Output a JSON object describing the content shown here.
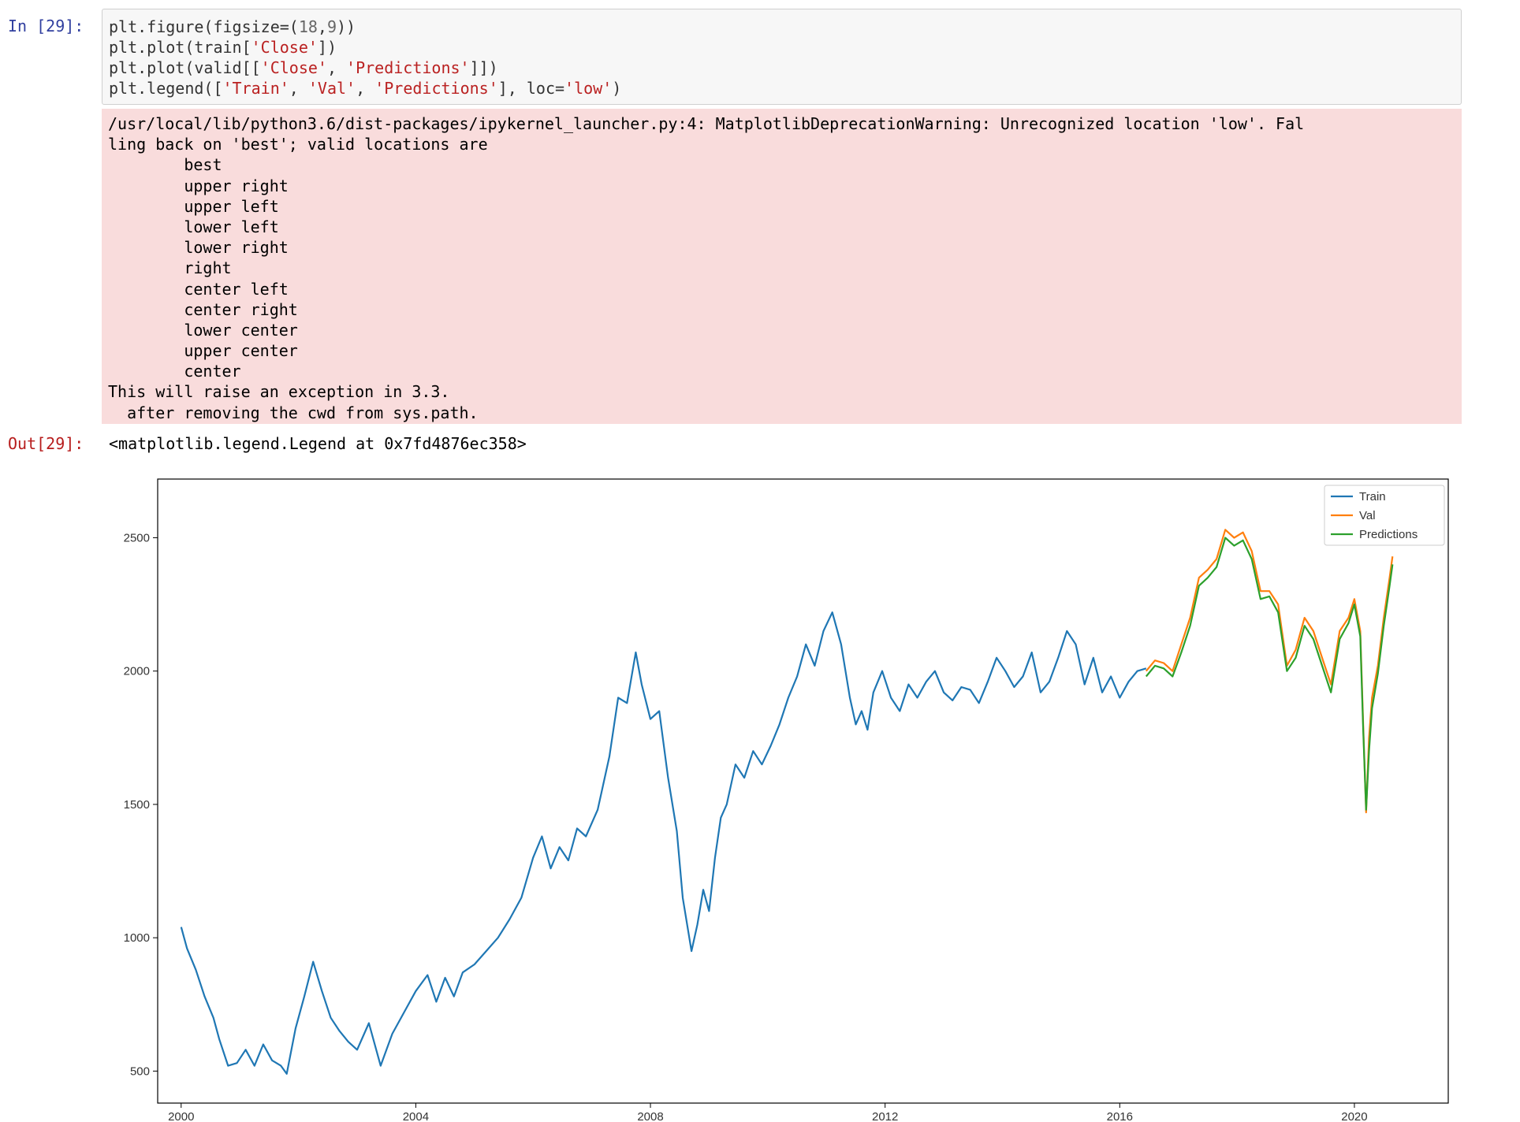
{
  "cell": {
    "input_prompt": "In [29]:",
    "output_prompt": "Out[29]:",
    "code_lines": [
      [
        {
          "t": "plt.figure(figsize=(",
          "c": ""
        },
        {
          "t": "18",
          "c": "num"
        },
        {
          "t": ",",
          "c": ""
        },
        {
          "t": "9",
          "c": "num"
        },
        {
          "t": "))",
          "c": ""
        }
      ],
      [
        {
          "t": "plt.plot(train[",
          "c": ""
        },
        {
          "t": "'Close'",
          "c": "str"
        },
        {
          "t": "])",
          "c": ""
        }
      ],
      [
        {
          "t": "plt.plot(valid[[",
          "c": ""
        },
        {
          "t": "'Close'",
          "c": "str"
        },
        {
          "t": ", ",
          "c": ""
        },
        {
          "t": "'Predictions'",
          "c": "str"
        },
        {
          "t": "]])",
          "c": ""
        }
      ],
      [
        {
          "t": "plt.legend([",
          "c": ""
        },
        {
          "t": "'Train'",
          "c": "str"
        },
        {
          "t": ", ",
          "c": ""
        },
        {
          "t": "'Val'",
          "c": "str"
        },
        {
          "t": ", ",
          "c": ""
        },
        {
          "t": "'Predictions'",
          "c": "str"
        },
        {
          "t": "], loc=",
          "c": ""
        },
        {
          "t": "'low'",
          "c": "str"
        },
        {
          "t": ")",
          "c": ""
        }
      ]
    ],
    "stderr_lines": [
      "/usr/local/lib/python3.6/dist-packages/ipykernel_launcher.py:4: MatplotlibDeprecationWarning: Unrecognized location 'low'. Fal",
      "ling back on 'best'; valid locations are",
      "        best",
      "        upper right",
      "        upper left",
      "        lower left",
      "        lower right",
      "        right",
      "        center left",
      "        center right",
      "        lower center",
      "        upper center",
      "        center",
      "This will raise an exception in 3.3.",
      "  after removing the cwd from sys.path."
    ],
    "output_text": "<matplotlib.legend.Legend at 0x7fd4876ec358>"
  },
  "chart_data": {
    "type": "line",
    "title": "",
    "xlabel": "",
    "ylabel": "",
    "xlim": [
      1999.6,
      2021.6
    ],
    "ylim": [
      380,
      2720
    ],
    "x_ticks": [
      2000,
      2004,
      2008,
      2012,
      2016,
      2020
    ],
    "x_tick_labels": [
      "2000",
      "2004",
      "2008",
      "2012",
      "2016",
      "2020"
    ],
    "y_ticks": [
      500,
      1000,
      1500,
      2000,
      2500
    ],
    "y_tick_labels": [
      "500",
      "1000",
      "1500",
      "2000",
      "2500"
    ],
    "grid": false,
    "legend_position": "top-right",
    "series": [
      {
        "name": "Train",
        "color": "#1f77b4",
        "x": [
          2000.0,
          2000.1,
          2000.25,
          2000.4,
          2000.55,
          2000.65,
          2000.8,
          2000.95,
          2001.1,
          2001.25,
          2001.4,
          2001.55,
          2001.7,
          2001.8,
          2001.95,
          2002.1,
          2002.25,
          2002.4,
          2002.55,
          2002.7,
          2002.85,
          2003.0,
          2003.2,
          2003.4,
          2003.6,
          2003.8,
          2004.0,
          2004.2,
          2004.35,
          2004.5,
          2004.65,
          2004.8,
          2005.0,
          2005.2,
          2005.4,
          2005.6,
          2005.8,
          2006.0,
          2006.15,
          2006.3,
          2006.45,
          2006.6,
          2006.75,
          2006.9,
          2007.1,
          2007.3,
          2007.45,
          2007.6,
          2007.75,
          2007.85,
          2008.0,
          2008.15,
          2008.3,
          2008.45,
          2008.55,
          2008.7,
          2008.8,
          2008.9,
          2009.0,
          2009.1,
          2009.2,
          2009.3,
          2009.45,
          2009.6,
          2009.75,
          2009.9,
          2010.05,
          2010.2,
          2010.35,
          2010.5,
          2010.65,
          2010.8,
          2010.95,
          2011.1,
          2011.25,
          2011.4,
          2011.5,
          2011.6,
          2011.7,
          2011.8,
          2011.95,
          2012.1,
          2012.25,
          2012.4,
          2012.55,
          2012.7,
          2012.85,
          2013.0,
          2013.15,
          2013.3,
          2013.45,
          2013.6,
          2013.75,
          2013.9,
          2014.05,
          2014.2,
          2014.35,
          2014.5,
          2014.65,
          2014.8,
          2014.95,
          2015.1,
          2015.25,
          2015.4,
          2015.55,
          2015.7,
          2015.85,
          2016.0,
          2016.15,
          2016.3,
          2016.45
        ],
        "y": [
          1040,
          960,
          880,
          780,
          700,
          620,
          520,
          530,
          580,
          520,
          600,
          540,
          520,
          490,
          660,
          780,
          910,
          800,
          700,
          650,
          610,
          580,
          680,
          520,
          640,
          720,
          800,
          860,
          760,
          850,
          780,
          870,
          900,
          950,
          1000,
          1070,
          1150,
          1300,
          1380,
          1260,
          1340,
          1290,
          1410,
          1380,
          1480,
          1680,
          1900,
          1880,
          2070,
          1950,
          1820,
          1850,
          1600,
          1400,
          1150,
          950,
          1050,
          1180,
          1100,
          1300,
          1450,
          1500,
          1650,
          1600,
          1700,
          1650,
          1720,
          1800,
          1900,
          1980,
          2100,
          2020,
          2150,
          2220,
          2100,
          1900,
          1800,
          1850,
          1780,
          1920,
          2000,
          1900,
          1850,
          1950,
          1900,
          1960,
          2000,
          1920,
          1890,
          1940,
          1930,
          1880,
          1960,
          2050,
          2000,
          1940,
          1980,
          2070,
          1920,
          1960,
          2050,
          2150,
          2100,
          1950,
          2050,
          1920,
          1980,
          1900,
          1960,
          2000,
          2010
        ]
      },
      {
        "name": "Val",
        "color": "#ff7f0e",
        "x": [
          2016.45,
          2016.6,
          2016.75,
          2016.9,
          2017.05,
          2017.2,
          2017.35,
          2017.5,
          2017.65,
          2017.8,
          2017.95,
          2018.1,
          2018.25,
          2018.4,
          2018.55,
          2018.7,
          2018.85,
          2019.0,
          2019.15,
          2019.3,
          2019.45,
          2019.6,
          2019.75,
          2019.9,
          2020.0,
          2020.1,
          2020.15,
          2020.2,
          2020.25,
          2020.3,
          2020.4,
          2020.5,
          2020.6,
          2020.65
        ],
        "y": [
          2000,
          2040,
          2030,
          2000,
          2100,
          2200,
          2350,
          2380,
          2420,
          2530,
          2500,
          2520,
          2450,
          2300,
          2300,
          2250,
          2020,
          2080,
          2200,
          2150,
          2050,
          1950,
          2150,
          2200,
          2270,
          2150,
          1800,
          1470,
          1750,
          1900,
          2020,
          2200,
          2350,
          2430
        ]
      },
      {
        "name": "Predictions",
        "color": "#2ca02c",
        "x": [
          2016.45,
          2016.6,
          2016.75,
          2016.9,
          2017.05,
          2017.2,
          2017.35,
          2017.5,
          2017.65,
          2017.8,
          2017.95,
          2018.1,
          2018.25,
          2018.4,
          2018.55,
          2018.7,
          2018.85,
          2019.0,
          2019.15,
          2019.3,
          2019.45,
          2019.6,
          2019.75,
          2019.9,
          2020.0,
          2020.1,
          2020.15,
          2020.2,
          2020.25,
          2020.3,
          2020.4,
          2020.5,
          2020.6,
          2020.65
        ],
        "y": [
          1980,
          2020,
          2010,
          1980,
          2070,
          2170,
          2320,
          2350,
          2390,
          2500,
          2470,
          2490,
          2420,
          2270,
          2280,
          2220,
          2000,
          2050,
          2170,
          2120,
          2020,
          1920,
          2120,
          2180,
          2250,
          2130,
          1780,
          1480,
          1700,
          1860,
          1990,
          2170,
          2320,
          2400
        ]
      }
    ]
  }
}
